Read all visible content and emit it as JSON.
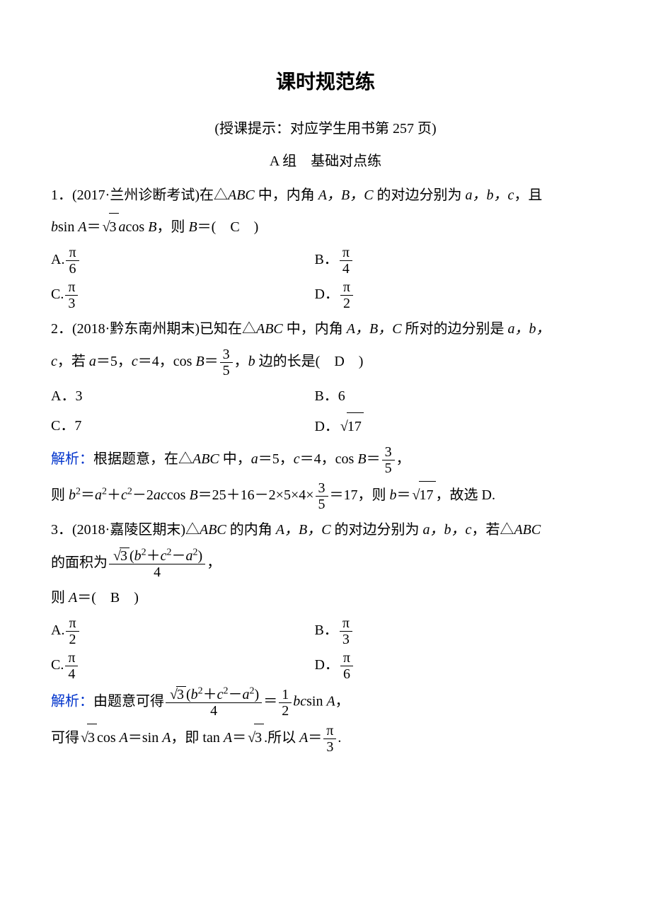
{
  "colors": {
    "text": "#000000",
    "accent_blue": "#0033cc",
    "background": "#ffffff"
  },
  "typography": {
    "body_font": "SimSun",
    "body_size_pt": 15,
    "title_size_pt": 21,
    "title_weight": "bold"
  },
  "title": "课时规范练",
  "subtitle": "(授课提示：对应学生用书第 257 页)",
  "section_label": "A 组　基础对点练",
  "q1": {
    "prefix": "1．(2017·兰州诊断考试)在△",
    "triangle": "ABC",
    "mid1": " 中，内角 ",
    "angles": "A，B，C",
    "mid2": " 的对边分别为 ",
    "sides": "a，b，c",
    "mid3": "，且",
    "eq_lhs1": "b",
    "eq_sin": "sin ",
    "eq_A": "A",
    "eq_eq": "＝",
    "eq_sqrt3": "3",
    "eq_a": "a",
    "eq_cos": "cos ",
    "eq_B": "B",
    "eq_tail": "，则 ",
    "eq_Bvar": "B",
    "eq_eq2": "＝(　C　)",
    "optA_label": "A.",
    "optA_num": "π",
    "optA_den": "6",
    "optB_label": "B．",
    "optB_num": "π",
    "optB_den": "4",
    "optC_label": "C.",
    "optC_num": "π",
    "optC_den": "3",
    "optD_label": "D．",
    "optD_num": "π",
    "optD_den": "2"
  },
  "q2": {
    "prefix": "2．(2018·黔东南州期末)已知在△",
    "triangle": "ABC",
    "mid1": " 中，内角 ",
    "angles": "A，B，C",
    "mid2": " 所对的边分别是 ",
    "sides": "a，b，",
    "line2_c": "c",
    "line2_mid": "，若 ",
    "line2_a": "a",
    "line2_eq1": "＝5，",
    "line2_cvar": "c",
    "line2_eq2": "＝4，cos ",
    "line2_B": "B",
    "line2_eq3": "＝",
    "frac_num": "3",
    "frac_den": "5",
    "line2_tail1": "，",
    "line2_b": "b",
    "line2_tail2": " 边的长是(　D　)",
    "optA": "A．3",
    "optB": "B．6",
    "optC": "C．7",
    "optD_label": "D．",
    "optD_sqrt": "17",
    "sol_label": "解析：",
    "sol1_a": "根据题意，在",
    "sol1_tri": "△",
    "sol1_ABC": "ABC",
    "sol1_b": " 中，",
    "sol1_av": "a",
    "sol1_c": "＝5，",
    "sol1_cv": "c",
    "sol1_d": "＝4，cos ",
    "sol1_Bv": "B",
    "sol1_e": "＝",
    "sol1_num": "3",
    "sol1_den": "5",
    "sol1_f": "，",
    "sol2_a": "则 ",
    "sol2_b": "b",
    "sol2_sq": "2",
    "sol2_c": "＝",
    "sol2_av": "a",
    "sol2_d": "＋",
    "sol2_cv": "c",
    "sol2_e": "－2",
    "sol2_ac": "ac",
    "sol2_f": "cos ",
    "sol2_Bv": "B",
    "sol2_g": "＝25＋16－2×5×4×",
    "sol2_num": "3",
    "sol2_den": "5",
    "sol2_h": "＝17，则 ",
    "sol2_bv2": "b",
    "sol2_i": "＝",
    "sol2_sqrt": "17",
    "sol2_j": "，故选 D."
  },
  "q3": {
    "prefix": "3．(2018·嘉陵区期末)△",
    "triangle": "ABC",
    "mid1": " 的内角 ",
    "angles": "A，B，C",
    "mid2": " 的对边分别为 ",
    "sides": "a，b，c",
    "mid3": "，若△",
    "triangle2": "ABC",
    "line2_a": "的面积为",
    "area_sqrt": "3",
    "area_paren_open": "(",
    "area_b": "b",
    "area_sq": "2",
    "area_plus": "＋",
    "area_c": "c",
    "area_minus": "－",
    "area_a": "a",
    "area_paren_close": ")",
    "area_den": "4",
    "line2_tail": "，",
    "line3_a": "则 ",
    "line3_A": "A",
    "line3_b": "＝(　B　)",
    "optA_label": "A.",
    "optA_num": "π",
    "optA_den": "2",
    "optB_label": "B．",
    "optB_num": "π",
    "optB_den": "3",
    "optC_label": "C.",
    "optC_num": "π",
    "optC_den": "4",
    "optD_label": "D．",
    "optD_num": "π",
    "optD_den": "6",
    "sol_label": "解析：",
    "sol1_a": "由题意可得",
    "sol1_sqrt": "3",
    "sol1_b": "b",
    "sol1_sq": "2",
    "sol1_plus": "＋",
    "sol1_c": "c",
    "sol1_minus": "－",
    "sol1_av": "a",
    "sol1_den": "4",
    "sol1_d": "＝",
    "sol1_half_num": "1",
    "sol1_half_den": "2",
    "sol1_bc": "bc",
    "sol1_e": "sin ",
    "sol1_Av": "A",
    "sol1_f": "，",
    "sol2_a": "可得",
    "sol2_sqrt": "3",
    "sol2_b": "cos ",
    "sol2_Av": "A",
    "sol2_c": "＝sin ",
    "sol2_d": "，即 tan ",
    "sol2_e": "＝",
    "sol2_sqrt2": "3",
    "sol2_f": ".所以 ",
    "sol2_g": "＝",
    "sol2_num": "π",
    "sol2_den": "3",
    "sol2_h": "."
  }
}
